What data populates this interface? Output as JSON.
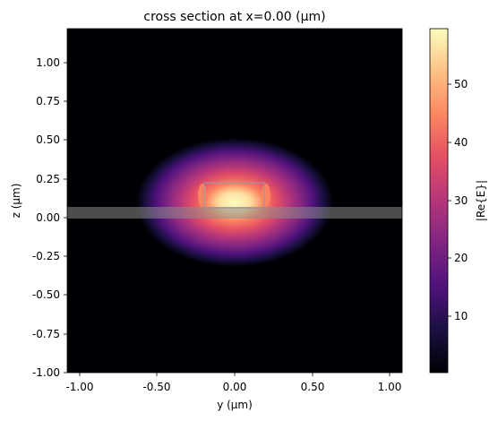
{
  "chart_data": {
    "type": "heatmap",
    "title": "cross section at x=0.00 (μm)",
    "xlabel": "y (μm)",
    "ylabel": "z (μm)",
    "xlim": [
      -1.08,
      1.08
    ],
    "ylim": [
      -1.0,
      1.22
    ],
    "xticks": [
      -1.0,
      -0.5,
      0.0,
      0.5,
      1.0
    ],
    "xtick_labels": [
      "-1.00",
      "-0.50",
      "0.00",
      "0.50",
      "1.00"
    ],
    "yticks": [
      1.0,
      0.75,
      0.5,
      0.25,
      0.0,
      -0.25,
      -0.5,
      -0.75,
      -1.0
    ],
    "ytick_labels": [
      "1.00",
      "0.75",
      "0.50",
      "0.25",
      "0.00",
      "-0.25",
      "-0.50",
      "-0.75",
      "-1.00"
    ],
    "colormap": "magma",
    "colorbar": {
      "label": "|Re{E}|",
      "range": [
        0.3,
        59
      ],
      "ticks": [
        10,
        20,
        30,
        40,
        50
      ],
      "tick_labels": [
        "10",
        "20",
        "30",
        "40",
        "50"
      ]
    },
    "field_peak": {
      "y": 0.0,
      "z": 0.1,
      "value": 59
    },
    "structures": [
      {
        "name": "waveguide core",
        "y_range": [
          -0.2,
          0.2
        ],
        "z_range": [
          0.0,
          0.22
        ]
      },
      {
        "name": "slab",
        "y_range": [
          -1.08,
          1.08
        ],
        "z_range": [
          -0.01,
          0.07
        ]
      }
    ]
  }
}
